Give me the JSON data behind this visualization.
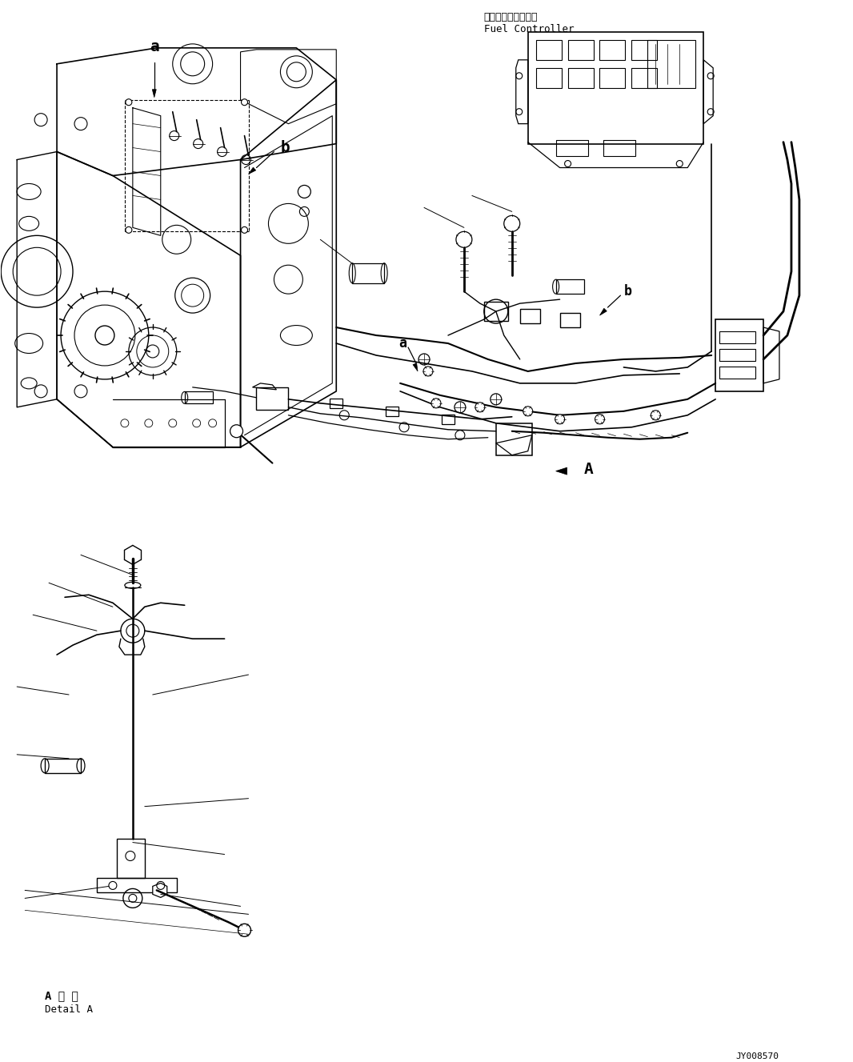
{
  "background_color": "#ffffff",
  "line_color": "#000000",
  "fuel_controller_label_jp": "フェルコントローラ",
  "fuel_controller_label_en": "Fuel Controller",
  "detail_a_label_jp": "A 詳 細",
  "detail_a_label_en": "Detail A",
  "part_number": "JY008570",
  "fig_width": 10.66,
  "fig_height": 13.27,
  "dpi": 100
}
